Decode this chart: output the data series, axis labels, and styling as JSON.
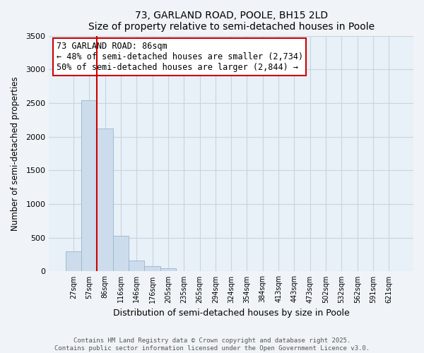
{
  "title": "73, GARLAND ROAD, POOLE, BH15 2LD",
  "subtitle": "Size of property relative to semi-detached houses in Poole",
  "xlabel": "Distribution of semi-detached houses by size in Poole",
  "ylabel": "Number of semi-detached properties",
  "categories": [
    "27sqm",
    "57sqm",
    "86sqm",
    "116sqm",
    "146sqm",
    "176sqm",
    "205sqm",
    "235sqm",
    "265sqm",
    "294sqm",
    "324sqm",
    "354sqm",
    "384sqm",
    "413sqm",
    "443sqm",
    "473sqm",
    "502sqm",
    "532sqm",
    "562sqm",
    "591sqm",
    "621sqm"
  ],
  "values": [
    300,
    2540,
    2120,
    530,
    160,
    80,
    50,
    0,
    0,
    0,
    0,
    0,
    0,
    0,
    0,
    0,
    0,
    0,
    0,
    0,
    0
  ],
  "highlight_index": 2,
  "bar_color": "#ccdcec",
  "bar_edge_color": "#9ab4cc",
  "highlight_line_color": "#cc0000",
  "annotation_title": "73 GARLAND ROAD: 86sqm",
  "annotation_line1": "← 48% of semi-detached houses are smaller (2,734)",
  "annotation_line2": "50% of semi-detached houses are larger (2,844) →",
  "annotation_box_color": "#cc0000",
  "ylim": [
    0,
    3500
  ],
  "yticks": [
    0,
    500,
    1000,
    1500,
    2000,
    2500,
    3000,
    3500
  ],
  "footer_line1": "Contains HM Land Registry data © Crown copyright and database right 2025.",
  "footer_line2": "Contains public sector information licensed under the Open Government Licence v3.0.",
  "background_color": "#f0f4f8",
  "plot_bg_color": "#e8f0f8",
  "grid_color": "#c8d4e0"
}
